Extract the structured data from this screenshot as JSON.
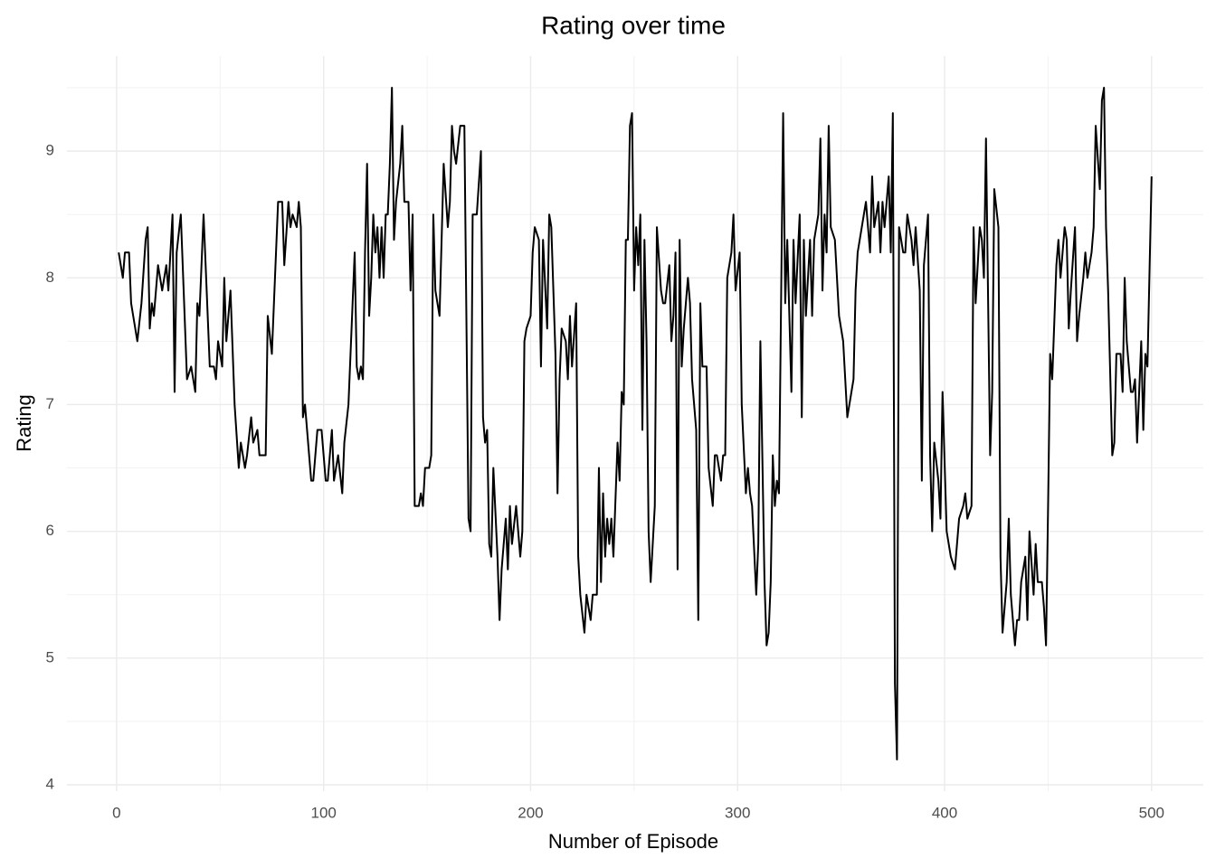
{
  "chart_data": {
    "type": "line",
    "title": "Rating over time",
    "x_label": "Number of Episode",
    "y_label": "Rating",
    "xlim": [
      -24,
      525
    ],
    "ylim": [
      3.95,
      9.75
    ],
    "xticks": [
      0,
      100,
      200,
      300,
      400,
      500
    ],
    "yticks": [
      4,
      5,
      6,
      7,
      8,
      9
    ],
    "grid": true,
    "x": [
      1,
      3,
      4,
      6,
      7,
      10,
      12,
      14,
      15,
      16,
      17,
      18,
      20,
      22,
      24,
      25,
      27,
      28,
      29,
      31,
      34,
      36,
      38,
      39,
      40,
      42,
      45,
      47,
      48,
      49,
      51,
      52,
      53,
      55,
      57,
      59,
      60,
      62,
      63,
      65,
      66,
      68,
      69,
      72,
      73,
      75,
      76,
      78,
      80,
      81,
      83,
      84,
      85,
      87,
      88,
      89,
      90,
      91,
      94,
      95,
      97,
      99,
      101,
      102,
      104,
      105,
      107,
      109,
      110,
      112,
      114,
      115,
      116,
      117,
      118,
      119,
      120,
      121,
      122,
      123,
      124,
      125,
      126,
      127,
      128,
      129,
      130,
      131,
      132,
      133,
      134,
      135,
      137,
      138,
      139,
      141,
      142,
      143,
      144,
      146,
      147,
      148,
      149,
      151,
      152,
      153,
      154,
      156,
      157,
      158,
      160,
      161,
      162,
      163,
      164,
      166,
      168,
      170,
      171,
      172,
      174,
      176,
      177,
      178,
      179,
      180,
      181,
      182,
      184,
      185,
      186,
      188,
      189,
      190,
      191,
      193,
      194,
      195,
      196,
      197,
      198,
      200,
      201,
      202,
      204,
      205,
      206,
      208,
      209,
      210,
      212,
      213,
      214,
      215,
      217,
      218,
      219,
      220,
      222,
      223,
      224,
      226,
      227,
      229,
      230,
      232,
      233,
      234,
      235,
      236,
      237,
      238,
      239,
      240,
      242,
      243,
      244,
      245,
      246,
      247,
      248,
      249,
      250,
      251,
      252,
      253,
      254,
      255,
      256,
      257,
      258,
      260,
      261,
      263,
      264,
      265,
      267,
      268,
      269,
      270,
      271,
      272,
      273,
      274,
      276,
      277,
      278,
      280,
      281,
      282,
      283,
      285,
      286,
      288,
      289,
      290,
      292,
      293,
      294,
      295,
      297,
      298,
      299,
      301,
      302,
      304,
      305,
      306,
      307,
      309,
      310,
      311,
      313,
      314,
      315,
      316,
      317,
      318,
      319,
      320,
      322,
      323,
      324,
      326,
      327,
      328,
      330,
      331,
      332,
      333,
      335,
      336,
      337,
      339,
      340,
      341,
      342,
      343,
      344,
      345,
      347,
      348,
      349,
      351,
      352,
      353,
      354,
      356,
      357,
      358,
      360,
      361,
      362,
      364,
      365,
      366,
      368,
      369,
      370,
      371,
      373,
      374,
      375,
      376,
      377,
      378,
      380,
      381,
      382,
      384,
      385,
      386,
      388,
      389,
      390,
      392,
      393,
      394,
      395,
      397,
      398,
      399,
      401,
      402,
      403,
      405,
      406,
      407,
      409,
      410,
      411,
      413,
      414,
      415,
      417,
      418,
      419,
      420,
      422,
      423,
      424,
      426,
      427,
      428,
      430,
      431,
      432,
      434,
      435,
      436,
      437,
      439,
      440,
      441,
      443,
      444,
      445,
      447,
      448,
      449,
      450,
      451,
      452,
      454,
      455,
      456,
      458,
      459,
      460,
      461,
      463,
      464,
      465,
      467,
      468,
      469,
      471,
      472,
      473,
      475,
      476,
      477,
      478,
      479,
      481,
      482,
      483,
      485,
      486,
      487,
      488,
      490,
      491,
      492,
      493,
      495,
      496,
      497,
      498,
      500
    ],
    "series": [
      {
        "name": "Rating",
        "color": "#000000",
        "values": [
          8.2,
          8.0,
          8.2,
          8.2,
          7.8,
          7.5,
          7.8,
          8.3,
          8.4,
          7.6,
          7.8,
          7.7,
          8.1,
          7.9,
          8.1,
          7.9,
          8.5,
          7.1,
          8.2,
          8.5,
          7.2,
          7.3,
          7.1,
          7.8,
          7.7,
          8.5,
          7.3,
          7.3,
          7.2,
          7.5,
          7.3,
          8.0,
          7.5,
          7.9,
          7.0,
          6.5,
          6.7,
          6.5,
          6.6,
          6.9,
          6.7,
          6.8,
          6.6,
          6.6,
          7.7,
          7.4,
          7.8,
          8.6,
          8.6,
          8.1,
          8.6,
          8.4,
          8.5,
          8.4,
          8.6,
          8.4,
          6.9,
          7.0,
          6.4,
          6.4,
          6.8,
          6.8,
          6.4,
          6.4,
          6.8,
          6.4,
          6.6,
          6.3,
          6.7,
          7.0,
          7.8,
          8.2,
          7.3,
          7.2,
          7.3,
          7.2,
          8.2,
          8.9,
          7.7,
          8.0,
          8.5,
          8.2,
          8.4,
          8.0,
          8.4,
          8.0,
          8.5,
          8.5,
          8.9,
          9.5,
          8.3,
          8.6,
          8.9,
          9.2,
          8.6,
          8.6,
          7.9,
          8.5,
          6.2,
          6.2,
          6.3,
          6.2,
          6.5,
          6.5,
          6.6,
          8.5,
          7.9,
          7.7,
          8.3,
          8.9,
          8.4,
          8.6,
          9.2,
          9.0,
          8.9,
          9.2,
          9.2,
          6.1,
          6.0,
          8.5,
          8.5,
          9.0,
          6.9,
          6.7,
          6.8,
          5.9,
          5.8,
          6.5,
          5.8,
          5.3,
          5.7,
          6.1,
          5.7,
          6.2,
          5.9,
          6.2,
          6.0,
          5.8,
          6.0,
          7.5,
          7.6,
          7.7,
          8.2,
          8.4,
          8.3,
          7.3,
          8.3,
          7.6,
          8.5,
          8.4,
          7.4,
          6.3,
          7.2,
          7.6,
          7.5,
          7.2,
          7.7,
          7.3,
          7.8,
          5.8,
          5.5,
          5.2,
          5.5,
          5.3,
          5.5,
          5.5,
          6.5,
          5.6,
          6.3,
          5.8,
          6.1,
          5.9,
          6.1,
          5.8,
          6.7,
          6.4,
          7.1,
          7.0,
          8.3,
          8.3,
          9.2,
          9.3,
          7.9,
          8.4,
          8.1,
          8.5,
          6.8,
          8.3,
          7.5,
          6.0,
          5.6,
          6.2,
          8.4,
          7.9,
          7.8,
          7.8,
          8.1,
          7.5,
          7.7,
          8.2,
          5.7,
          8.3,
          7.3,
          7.6,
          8.0,
          7.8,
          7.2,
          6.8,
          5.3,
          7.8,
          7.3,
          7.3,
          6.5,
          6.2,
          6.6,
          6.6,
          6.4,
          6.6,
          6.6,
          8.0,
          8.2,
          8.5,
          7.9,
          8.2,
          7.0,
          6.3,
          6.5,
          6.3,
          6.2,
          5.5,
          5.9,
          7.5,
          5.6,
          5.1,
          5.2,
          5.6,
          6.6,
          6.2,
          6.4,
          6.3,
          9.3,
          7.8,
          8.3,
          7.1,
          8.3,
          7.8,
          8.5,
          6.9,
          8.3,
          7.7,
          8.3,
          7.7,
          8.3,
          8.5,
          9.1,
          7.9,
          8.5,
          8.2,
          9.2,
          8.4,
          8.3,
          8.0,
          7.7,
          7.5,
          7.2,
          6.9,
          7.0,
          7.2,
          7.9,
          8.2,
          8.4,
          8.5,
          8.6,
          8.2,
          8.8,
          8.4,
          8.6,
          8.2,
          8.6,
          8.4,
          8.8,
          8.2,
          9.3,
          4.8,
          4.2,
          8.4,
          8.2,
          8.2,
          8.5,
          8.3,
          8.1,
          8.4,
          7.9,
          6.4,
          8.1,
          8.5,
          6.6,
          6.0,
          6.7,
          6.4,
          6.1,
          7.1,
          6.0,
          5.9,
          5.8,
          5.7,
          5.9,
          6.1,
          6.2,
          6.3,
          6.1,
          6.2,
          8.4,
          7.8,
          8.4,
          8.3,
          8.0,
          9.1,
          6.6,
          7.1,
          8.7,
          8.4,
          5.8,
          5.2,
          5.6,
          6.1,
          5.5,
          5.1,
          5.3,
          5.3,
          5.6,
          5.8,
          5.3,
          6.0,
          5.5,
          5.9,
          5.6,
          5.6,
          5.4,
          5.1,
          6.2,
          7.4,
          7.2,
          8.1,
          8.3,
          8.0,
          8.4,
          8.3,
          7.6,
          7.9,
          8.4,
          7.5,
          7.7,
          8.0,
          8.2,
          8.0,
          8.2,
          8.4,
          9.2,
          8.7,
          9.4,
          9.5,
          8.4,
          7.9,
          6.6,
          6.7,
          7.4,
          7.4,
          7.1,
          8.0,
          7.5,
          7.1,
          7.1,
          7.2,
          6.7,
          7.5,
          6.8,
          7.4,
          7.3,
          8.8
        ]
      }
    ]
  }
}
